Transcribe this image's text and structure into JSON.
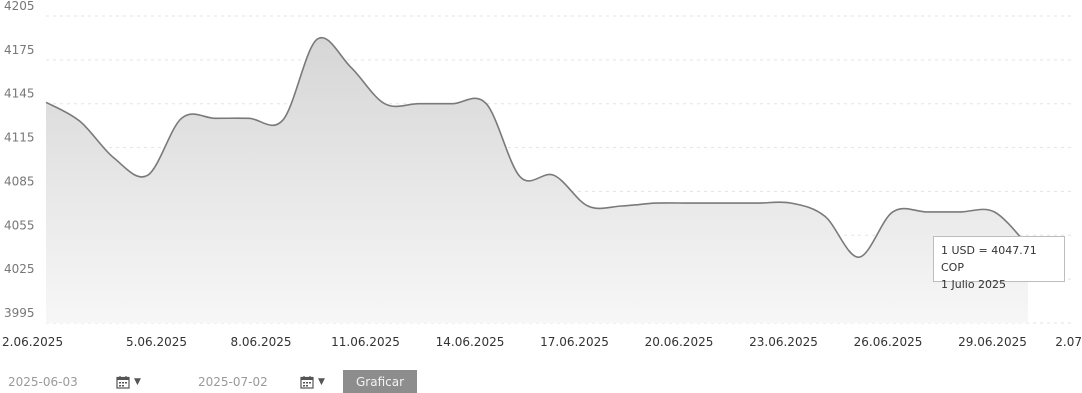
{
  "chart_data": {
    "type": "area",
    "y_ticks": [
      "4205",
      "4175",
      "4145",
      "4115",
      "4085",
      "4055",
      "4025",
      "3995"
    ],
    "x_ticks": [
      "2.06.2025",
      "5.06.2025",
      "8.06.2025",
      "11.06.2025",
      "14.06.2025",
      "17.06.2025",
      "20.06.2025",
      "23.06.2025",
      "26.06.2025",
      "29.06.2025",
      "2.07"
    ],
    "ylim": [
      3995,
      4205
    ],
    "x": [
      "2025-06-02",
      "2025-06-03",
      "2025-06-04",
      "2025-06-05",
      "2025-06-06",
      "2025-06-07",
      "2025-06-08",
      "2025-06-09",
      "2025-06-10",
      "2025-06-11",
      "2025-06-12",
      "2025-06-13",
      "2025-06-14",
      "2025-06-15",
      "2025-06-16",
      "2025-06-17",
      "2025-06-18",
      "2025-06-19",
      "2025-06-20",
      "2025-06-21",
      "2025-06-22",
      "2025-06-23",
      "2025-06-24",
      "2025-06-25",
      "2025-06-26",
      "2025-06-27",
      "2025-06-28",
      "2025-06-29",
      "2025-06-30",
      "2025-07-01"
    ],
    "values": [
      4146,
      4133,
      4108,
      4096,
      4135,
      4135,
      4135,
      4134,
      4189,
      4170,
      4145,
      4145,
      4145,
      4145,
      4095,
      4096,
      4075,
      4075,
      4077,
      4077,
      4077,
      4077,
      4077,
      4068,
      4040,
      4071,
      4071,
      4071,
      4071,
      4047.71
    ],
    "tooltip": {
      "line1": "1 USD = 4047.71 COP",
      "line2": "1 Julio 2025"
    },
    "colors": {
      "line": "#7a7a7a",
      "fill_top": "#dadada",
      "fill_bottom": "#f6f6f6"
    }
  },
  "controls": {
    "start_date": "2025-06-03",
    "end_date": "2025-07-02",
    "submit_label": "Graficar"
  }
}
